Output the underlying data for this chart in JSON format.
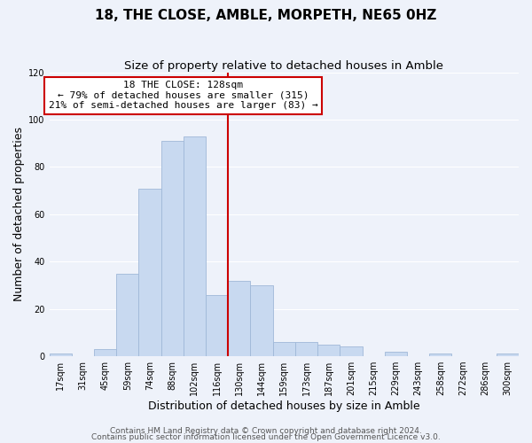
{
  "title": "18, THE CLOSE, AMBLE, MORPETH, NE65 0HZ",
  "subtitle": "Size of property relative to detached houses in Amble",
  "xlabel": "Distribution of detached houses by size in Amble",
  "ylabel": "Number of detached properties",
  "bin_labels": [
    "17sqm",
    "31sqm",
    "45sqm",
    "59sqm",
    "74sqm",
    "88sqm",
    "102sqm",
    "116sqm",
    "130sqm",
    "144sqm",
    "159sqm",
    "173sqm",
    "187sqm",
    "201sqm",
    "215sqm",
    "229sqm",
    "243sqm",
    "258sqm",
    "272sqm",
    "286sqm",
    "300sqm"
  ],
  "bar_values": [
    1,
    0,
    3,
    35,
    71,
    91,
    93,
    26,
    32,
    30,
    6,
    6,
    5,
    4,
    0,
    2,
    0,
    1,
    0,
    0,
    1
  ],
  "bar_color": "#c8d9f0",
  "bar_edge_color": "#a0b8d8",
  "vline_bin": 8,
  "vline_color": "#cc0000",
  "annotation_title": "18 THE CLOSE: 128sqm",
  "annotation_line1": "← 79% of detached houses are smaller (315)",
  "annotation_line2": "21% of semi-detached houses are larger (83) →",
  "annotation_box_color": "#ffffff",
  "annotation_box_edge": "#cc0000",
  "ylim": [
    0,
    120
  ],
  "yticks": [
    0,
    20,
    40,
    60,
    80,
    100,
    120
  ],
  "footer1": "Contains HM Land Registry data © Crown copyright and database right 2024.",
  "footer2": "Contains public sector information licensed under the Open Government Licence v3.0.",
  "bg_color": "#eef2fa",
  "grid_color": "#ffffff",
  "title_fontsize": 11,
  "subtitle_fontsize": 9.5,
  "label_fontsize": 9,
  "tick_fontsize": 7,
  "annot_fontsize": 8,
  "footer_fontsize": 6.5
}
